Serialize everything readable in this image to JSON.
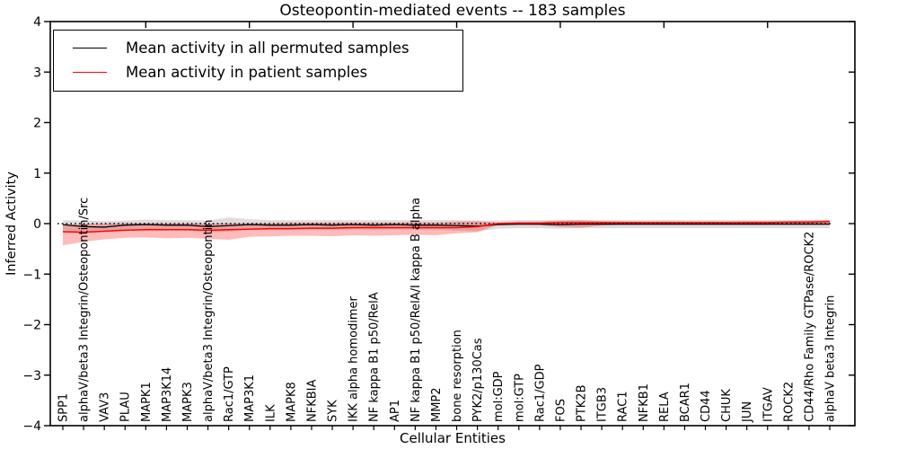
{
  "title": "Osteopontin-mediated events -- 183 samples",
  "axes": {
    "x_label": "Cellular Entities",
    "y_label": "Inferred Activity"
  },
  "legend": {
    "entries": [
      {
        "label": "Mean activity in all permuted samples",
        "color": "#000000"
      },
      {
        "label": "Mean activity in patient samples",
        "color": "#ff0000"
      }
    ]
  },
  "colors": {
    "permuted_line": "#000000",
    "permuted_band": "#999999",
    "patient_line": "#ff0000",
    "patient_band": "#ff0000",
    "zero_line": "#000000",
    "frame": "#000000"
  },
  "chart_data": {
    "type": "line",
    "title": "Osteopontin-mediated events -- 183 samples",
    "xlabel": "Cellular Entities",
    "ylabel": "Inferred Activity",
    "ylim": [
      -4,
      4
    ],
    "y_ticks": [
      4,
      3,
      2,
      1,
      0,
      -1,
      -2,
      -3,
      -4
    ],
    "grid": false,
    "legend_position": "upper left",
    "zero_reference_line": {
      "y": 0,
      "style": "dotted",
      "color": "#000000"
    },
    "top_tick_indices": [
      4,
      9,
      14,
      19,
      24,
      29,
      34
    ],
    "categories": [
      "SPP1",
      "alphaV/beta3 Integrin/Osteopontin/Src",
      "VAV3",
      "PLAU",
      "MAPK1",
      "MAP3K14",
      "MAPK3",
      "alphaV/beta3 Integrin/Osteopontin",
      "Rac1/GTP",
      "MAP3K1",
      "ILK",
      "MAPK8",
      "NFKBIA",
      "SYK",
      "IKK alpha homodimer",
      "NF kappa B1 p50/RelA",
      "AP1",
      "NF kappa B1 p50/RelA/I kappa B alpha",
      "MMP2",
      "bone resorption",
      "PYK2/p130Cas",
      "mol:GDP",
      "mol:GTP",
      "Rac1/GDP",
      "FOS",
      "PTK2B",
      "ITGB3",
      "RAC1",
      "NFKB1",
      "RELA",
      "BCAR1",
      "CD44",
      "CHUK",
      "JUN",
      "ITGAV",
      "ROCK2",
      "CD44/Rho Family GTPase/ROCK2",
      "alphaV beta3 Integrin"
    ],
    "series": [
      {
        "name": "Mean activity in all permuted samples",
        "color": "#000000",
        "band_color": "#999999",
        "values": [
          -0.02,
          -0.06,
          -0.07,
          -0.03,
          -0.02,
          -0.03,
          -0.03,
          -0.06,
          -0.04,
          -0.02,
          -0.03,
          -0.03,
          -0.02,
          -0.03,
          -0.02,
          -0.03,
          -0.02,
          -0.03,
          -0.03,
          -0.04,
          -0.05,
          -0.02,
          -0.01,
          -0.01,
          -0.02,
          -0.01,
          -0.01,
          -0.01,
          -0.01,
          -0.01,
          -0.01,
          -0.01,
          -0.01,
          -0.01,
          -0.01,
          -0.01,
          -0.01,
          -0.01
        ],
        "band_upper": [
          0.07,
          0.06,
          0.05,
          0.06,
          0.08,
          0.07,
          0.07,
          0.06,
          0.12,
          0.09,
          0.07,
          0.07,
          0.07,
          0.07,
          0.07,
          0.07,
          0.07,
          0.07,
          0.07,
          0.07,
          0.06,
          0.06,
          0.07,
          0.07,
          0.07,
          0.07,
          0.07,
          0.07,
          0.07,
          0.07,
          0.07,
          0.07,
          0.07,
          0.07,
          0.07,
          0.07,
          0.07,
          0.07
        ],
        "band_lower": [
          -0.13,
          -0.18,
          -0.17,
          -0.14,
          -0.13,
          -0.13,
          -0.13,
          -0.17,
          -0.16,
          -0.12,
          -0.12,
          -0.12,
          -0.11,
          -0.12,
          -0.11,
          -0.12,
          -0.11,
          -0.12,
          -0.12,
          -0.14,
          -0.15,
          -0.1,
          -0.09,
          -0.09,
          -0.1,
          -0.09,
          -0.09,
          -0.09,
          -0.09,
          -0.09,
          -0.09,
          -0.09,
          -0.09,
          -0.09,
          -0.09,
          -0.09,
          -0.09,
          -0.09
        ]
      },
      {
        "name": "Mean activity in patient samples",
        "color": "#ff0000",
        "band_color": "#ff0000",
        "values": [
          -0.16,
          -0.17,
          -0.15,
          -0.13,
          -0.12,
          -0.12,
          -0.12,
          -0.13,
          -0.12,
          -0.11,
          -0.1,
          -0.1,
          -0.09,
          -0.09,
          -0.08,
          -0.08,
          -0.08,
          -0.08,
          -0.08,
          -0.08,
          -0.06,
          0.0,
          0.01,
          0.01,
          0.02,
          0.02,
          0.02,
          0.02,
          0.02,
          0.02,
          0.02,
          0.02,
          0.02,
          0.02,
          0.02,
          0.03,
          0.03,
          0.04
        ],
        "band_upper": [
          -0.03,
          -0.01,
          0.0,
          0.01,
          0.01,
          0.01,
          0.01,
          0.0,
          0.01,
          0.01,
          0.01,
          0.02,
          0.02,
          0.02,
          0.02,
          0.02,
          0.02,
          0.03,
          0.02,
          0.04,
          0.05,
          0.02,
          0.04,
          0.04,
          0.06,
          0.07,
          0.05,
          0.04,
          0.04,
          0.04,
          0.04,
          0.04,
          0.04,
          0.05,
          0.05,
          0.05,
          0.06,
          0.07
        ],
        "band_lower": [
          -0.43,
          -0.36,
          -0.31,
          -0.28,
          -0.27,
          -0.29,
          -0.28,
          -0.3,
          -0.32,
          -0.26,
          -0.25,
          -0.24,
          -0.24,
          -0.25,
          -0.23,
          -0.24,
          -0.23,
          -0.22,
          -0.23,
          -0.19,
          -0.17,
          -0.02,
          -0.02,
          -0.03,
          -0.07,
          -0.08,
          -0.04,
          -0.02,
          -0.02,
          -0.02,
          -0.02,
          -0.02,
          -0.02,
          -0.02,
          -0.02,
          -0.01,
          0.0,
          0.01
        ]
      }
    ]
  }
}
